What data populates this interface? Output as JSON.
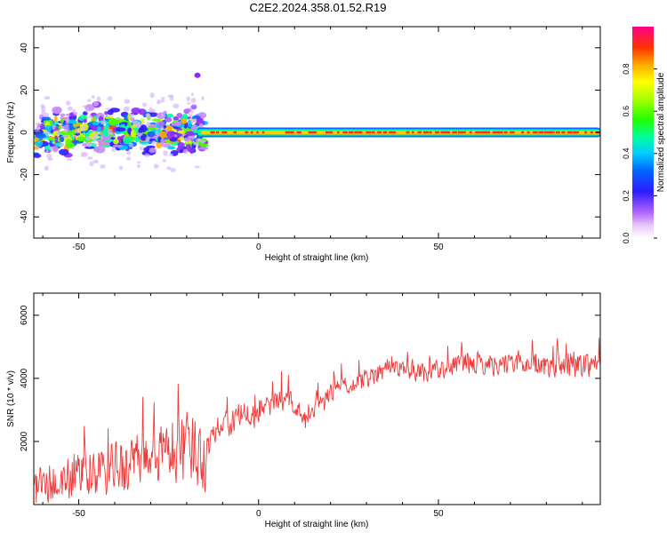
{
  "title": "C2E2.2024.358.01.52.R19",
  "colors": {
    "snr_line": "#ef3a3a",
    "axis": "#000000",
    "background": "#ffffff"
  },
  "chart_data": [
    {
      "type": "heatmap",
      "panel": "top",
      "xlabel": "Height of straight line (km)",
      "ylabel": "Frequency (Hz)",
      "xlim": [
        -62.5,
        95
      ],
      "ylim": [
        -50,
        50
      ],
      "xticks": [
        -50,
        0,
        50
      ],
      "yticks": [
        -40,
        -20,
        0,
        20,
        40
      ],
      "colorbar": {
        "label": "Normalized spectral amplitude",
        "range": [
          0,
          1
        ],
        "ticks": [
          0.0,
          0.2,
          0.4,
          0.6,
          0.8
        ],
        "tick_labels": [
          "0.0",
          "0.2",
          "0.4",
          "0.6",
          "0.8"
        ]
      },
      "description_of_content": "Broad scattered spectral energy between about -62 km and -15 km spanning roughly -10 to +10 Hz (with isolated patches up to ~27 Hz near -17 km); narrow high-amplitude band centred near 0 Hz from about -15 km to 95 km"
    },
    {
      "type": "line",
      "panel": "bottom",
      "xlabel": "Height of straight line (km)",
      "ylabel": "SNR (10 * v/v)",
      "xlim": [
        -62.5,
        95
      ],
      "ylim": [
        0,
        6700
      ],
      "xticks": [
        -50,
        0,
        50
      ],
      "yticks": [
        2000,
        4000,
        6000
      ],
      "series": [
        {
          "color": "#ef3a3a",
          "trend_x": [
            -62,
            -55,
            -50,
            -45,
            -40,
            -35,
            -30,
            -25,
            -20,
            -15,
            -13,
            -11,
            -8,
            -5,
            -2,
            0,
            3,
            6,
            10,
            13,
            15,
            18,
            20,
            23,
            25,
            28,
            30,
            33,
            36,
            40,
            45,
            50,
            55,
            60,
            65,
            70,
            75,
            80,
            85,
            90,
            95
          ],
          "trend_y": [
            500,
            700,
            900,
            1000,
            1150,
            1300,
            1500,
            1700,
            1800,
            1500,
            2200,
            2600,
            2500,
            2900,
            2700,
            3000,
            3100,
            3300,
            3200,
            2600,
            2900,
            3200,
            3600,
            3700,
            3800,
            3900,
            4000,
            4200,
            4350,
            4300,
            4200,
            4300,
            4450,
            4500,
            4450,
            4500,
            4500,
            4350,
            4400,
            4450,
            4500
          ],
          "noise_amp_x": [
            -62,
            -15,
            -14,
            10,
            30,
            95
          ],
          "noise_amp_y": [
            700,
            1300,
            500,
            400,
            350,
            450
          ],
          "points": 900
        }
      ]
    }
  ]
}
